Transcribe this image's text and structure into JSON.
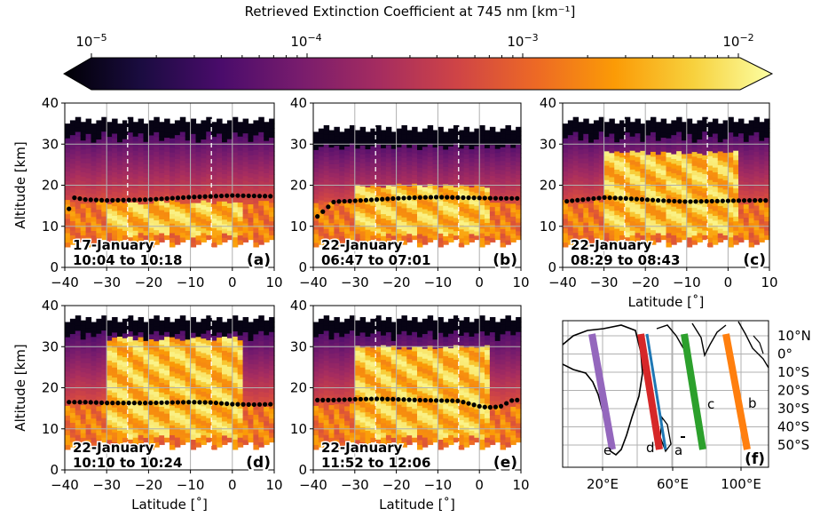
{
  "colorbar": {
    "title": "Retrieved Extinction Coefficient at 745 nm [km⁻¹]",
    "scale": "log",
    "range": [
      1e-05,
      0.01
    ],
    "ticks": [
      {
        "base": "10",
        "exp": "−5",
        "value": 1e-05
      },
      {
        "base": "10",
        "exp": "−4",
        "value": 0.0001
      },
      {
        "base": "10",
        "exp": "−3",
        "value": 0.001
      },
      {
        "base": "10",
        "exp": "−2",
        "value": 0.01
      }
    ],
    "colors": [
      "#000004",
      "#1b0c41",
      "#4a0c6b",
      "#781c6d",
      "#a52c60",
      "#cf4446",
      "#ed6925",
      "#fb9b06",
      "#f7d13d",
      "#fcffa4"
    ]
  },
  "chart_data": [
    {
      "type": "heatmap",
      "panel": "(a)",
      "date": "17-January",
      "time": "10:04 to 10:18",
      "xlabel": "",
      "ylabel": "Altitude [km]",
      "xlim": [
        -40,
        10
      ],
      "ylim": [
        0,
        40
      ],
      "x_ticks": [
        "−40",
        "−30",
        "−20",
        "−10",
        "0",
        "10"
      ],
      "y_ticks": [
        "0",
        "10",
        "20",
        "30",
        "40"
      ],
      "dashed_lines_x": [
        -25,
        -5
      ],
      "cloud_top_km": 35,
      "plume_km": [
        8,
        16
      ],
      "tropopause": {
        "x": [
          -40,
          -38,
          -35,
          -30,
          -25,
          -20,
          -15,
          -10,
          -5,
          0,
          5,
          10
        ],
        "y": [
          11.5,
          17,
          16.5,
          16.3,
          16.4,
          16.5,
          16.8,
          17.1,
          17.3,
          17.5,
          17.4,
          17.3
        ]
      }
    },
    {
      "type": "heatmap",
      "panel": "(b)",
      "date": "22-January",
      "time": "06:47 to 07:01",
      "xlabel": "",
      "ylabel": "",
      "xlim": [
        -40,
        10
      ],
      "ylim": [
        0,
        40
      ],
      "x_ticks": [
        "−40",
        "−30",
        "−20",
        "−10",
        "0",
        "10"
      ],
      "y_ticks": [
        "0",
        "10",
        "20",
        "30",
        "40"
      ],
      "dashed_lines_x": [
        -25,
        -5
      ],
      "cloud_top_km": 33,
      "plume_km": [
        8,
        20
      ],
      "tropopause": {
        "x": [
          -40,
          -35,
          -30,
          -25,
          -20,
          -15,
          -10,
          -5,
          0,
          5,
          10
        ],
        "y": [
          11.5,
          16,
          16.2,
          16.5,
          16.8,
          17,
          17.1,
          17,
          16.9,
          16.8,
          16.8
        ]
      }
    },
    {
      "type": "heatmap",
      "panel": "(c)",
      "date": "22-January",
      "time": "08:29 to 08:43",
      "xlabel": "Latitude [˚]",
      "ylabel": "",
      "xlim": [
        -40,
        10
      ],
      "ylim": [
        0,
        40
      ],
      "x_ticks": [
        "−40",
        "−30",
        "−20",
        "−10",
        "0",
        "10"
      ],
      "y_ticks": [
        "0",
        "10",
        "20",
        "30",
        "40"
      ],
      "dashed_lines_x": [
        -25,
        -5
      ],
      "cloud_top_km": 35,
      "plume_km": [
        8,
        28
      ],
      "tropopause": {
        "x": [
          -40,
          -35,
          -30,
          -25,
          -20,
          -15,
          -10,
          -5,
          0,
          5,
          10
        ],
        "y": [
          16,
          16.5,
          17,
          16.8,
          16.5,
          16.2,
          16,
          16.1,
          16.2,
          16.3,
          16.3
        ]
      }
    },
    {
      "type": "heatmap",
      "panel": "(d)",
      "date": "22-January",
      "time": "10:10 to 10:24",
      "xlabel": "Latitude [˚]",
      "ylabel": "Altitude [km]",
      "xlim": [
        -40,
        10
      ],
      "ylim": [
        0,
        40
      ],
      "x_ticks": [
        "−40",
        "−30",
        "−20",
        "−10",
        "0",
        "10"
      ],
      "y_ticks": [
        "0",
        "10",
        "20",
        "30",
        "40"
      ],
      "dashed_lines_x": [
        -25,
        -5
      ],
      "cloud_top_km": 36,
      "plume_km": [
        8,
        32
      ],
      "tropopause": {
        "x": [
          -40,
          -35,
          -30,
          -25,
          -20,
          -15,
          -10,
          -5,
          0,
          5,
          10
        ],
        "y": [
          16.5,
          16.5,
          16.3,
          16.3,
          16.3,
          16.4,
          16.5,
          16.4,
          16,
          15.9,
          16
        ]
      }
    },
    {
      "type": "heatmap",
      "panel": "(e)",
      "date": "22-January",
      "time": "11:52 to 12:06",
      "xlabel": "Latitude [˚]",
      "ylabel": "",
      "xlim": [
        -40,
        10
      ],
      "ylim": [
        0,
        40
      ],
      "x_ticks": [
        "−40",
        "−30",
        "−20",
        "−10",
        "0",
        "10"
      ],
      "y_ticks": [
        "0",
        "10",
        "20",
        "30",
        "40"
      ],
      "dashed_lines_x": [
        -25,
        -5
      ],
      "cloud_top_km": 36,
      "plume_km": [
        8,
        30
      ],
      "tropopause": {
        "x": [
          -40,
          -35,
          -30,
          -25,
          -20,
          -15,
          -10,
          -5,
          0,
          2,
          5,
          8,
          10
        ],
        "y": [
          17,
          17,
          17.2,
          17.3,
          17.2,
          17,
          16.9,
          16.8,
          15.5,
          15.2,
          15.4,
          17,
          17
        ]
      }
    }
  ],
  "map": {
    "panel": "(f)",
    "lat_labels": [
      "10°N",
      "0°",
      "10°S",
      "20°S",
      "30°S",
      "40°S",
      "50°S"
    ],
    "lon_labels": [
      "20°E",
      "60°E",
      "100°E"
    ],
    "tracks": [
      {
        "label": "e",
        "color": "#9467bd"
      },
      {
        "label": "d",
        "color": "#d62728"
      },
      {
        "label": "a",
        "color": "#1f77b4"
      },
      {
        "label": "c",
        "color": "#2ca02c"
      },
      {
        "label": "b",
        "color": "#ff7f0e"
      }
    ]
  }
}
